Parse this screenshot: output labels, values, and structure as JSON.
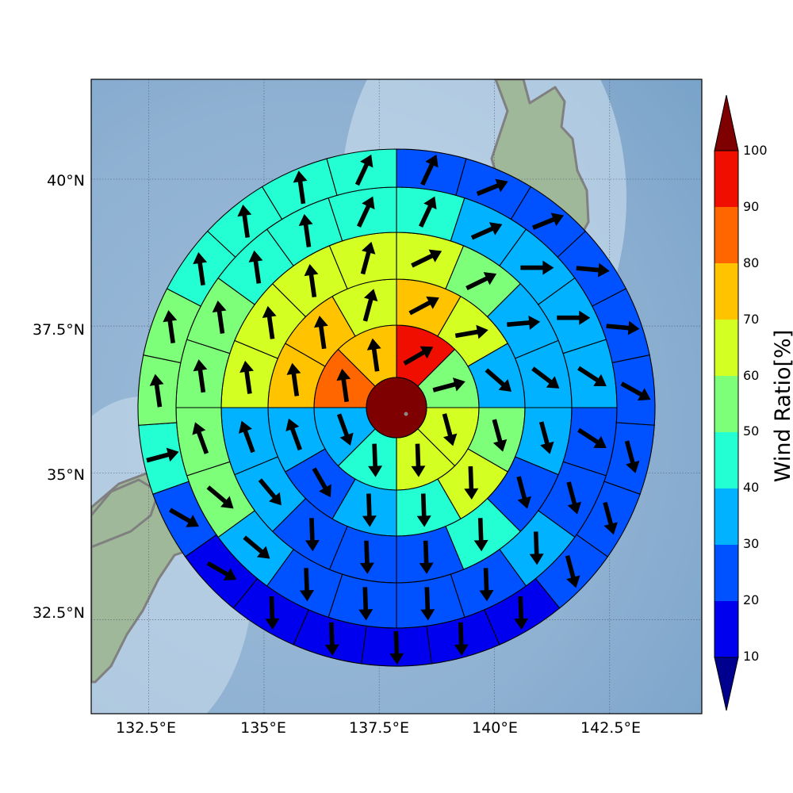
{
  "chart_data": {
    "type": "polar-sector-map",
    "map": {
      "xlim": [
        131.25,
        144.5
      ],
      "ylim": [
        30.9,
        41.7
      ],
      "lon_ticks": [
        "132.5°E",
        "135°E",
        "137.5°E",
        "140°E",
        "142.5°E"
      ],
      "lat_ticks": [
        "40°N",
        "37.5°N",
        "35°N",
        "32.5°N"
      ],
      "grid": true,
      "ocean_color": "#9cbcd8",
      "coast_color": "#808080"
    },
    "colorbar": {
      "label": "Wind Ratio[%]",
      "ticks": [
        "10",
        "20",
        "30",
        "40",
        "50",
        "60",
        "70",
        "80",
        "90",
        "100"
      ],
      "colors": [
        "#00008f",
        "#0000ee",
        "#0051ff",
        "#00b2ff",
        "#23ffd3",
        "#7dff7a",
        "#d3ff23",
        "#ffc300",
        "#ff6600",
        "#ef0e00",
        "#7f0000"
      ],
      "extend": "both"
    },
    "rings": [
      {
        "ring": 1,
        "values": [
          90,
          55,
          62,
          65,
          45,
          35,
          80,
          75
        ]
      },
      {
        "ring": 2,
        "values": [
          72,
          65,
          38,
          55,
          65,
          45,
          32,
          28,
          35,
          75,
          72,
          65
        ]
      },
      {
        "ring": 3,
        "values": [
          62,
          55,
          33,
          30,
          33,
          28,
          45,
          28,
          28,
          23,
          33,
          33,
          65,
          65,
          65,
          62
        ]
      },
      {
        "ring": 4,
        "values": [
          45,
          38,
          30,
          32,
          32,
          22,
          22,
          32,
          22,
          22,
          22,
          22,
          32,
          55,
          55,
          55,
          55,
          45,
          45,
          42
        ]
      },
      {
        "ring": 5,
        "values": [
          22,
          28,
          22,
          22,
          22,
          22,
          22,
          22,
          28,
          15,
          15,
          15,
          15,
          15,
          15,
          22,
          45,
          55,
          55,
          45,
          45,
          45,
          45
        ]
      }
    ],
    "center_value": 100
  }
}
